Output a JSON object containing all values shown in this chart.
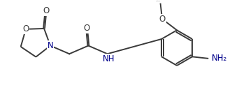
{
  "bg_color": "#ffffff",
  "line_color": "#3a3a3a",
  "atom_colors": {
    "O": "#3a3a3a",
    "N": "#00008B"
  },
  "line_width": 1.4,
  "font_size": 8.5,
  "figsize": [
    3.32,
    1.42
  ],
  "dpi": 100,
  "xlim": [
    0,
    10.5
  ],
  "ylim": [
    0,
    4.5
  ]
}
